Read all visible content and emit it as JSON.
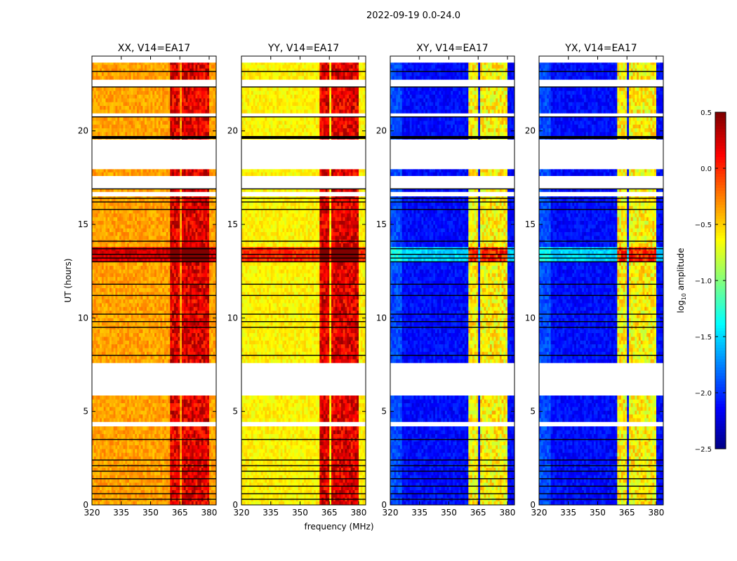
{
  "chart_data": {
    "type": "heatmap",
    "title": "2022-09-19 0.0-24.0",
    "xlabel": "frequency (MHz)",
    "ylabel": "UT (hours)",
    "xlim": [
      320,
      383.6
    ],
    "ylim": [
      0,
      24
    ],
    "xticks": [
      320,
      335,
      350,
      365,
      380
    ],
    "yticks": [
      0,
      5,
      10,
      15,
      20
    ],
    "panels": [
      {
        "title": "XX, V14=EA17",
        "base": -0.35,
        "rfi": 0.2
      },
      {
        "title": "YY, V14=EA17",
        "base": -0.6,
        "rfi": 0.2
      },
      {
        "title": "XY, V14=EA17",
        "base": -2.1,
        "rfi": -0.6
      },
      {
        "title": "YX, V14=EA17",
        "base": -2.1,
        "rfi": -0.6
      }
    ],
    "rfi_bands": [
      [
        360.3,
        365.2
      ],
      [
        365.6,
        370
      ],
      [
        370.4,
        375
      ],
      [
        375.4,
        380
      ]
    ],
    "segments": [
      [
        0,
        4.2
      ],
      [
        4.45,
        5.85
      ],
      [
        7.6,
        16.5
      ],
      [
        16.75,
        16.9
      ],
      [
        17.6,
        17.95
      ],
      [
        19.55,
        20.75
      ],
      [
        20.95,
        22.35
      ],
      [
        22.75,
        23.65
      ]
    ],
    "flagged_rows": [
      0.3,
      0.6,
      1.0,
      1.4,
      1.8,
      2.1,
      2.4,
      3.5,
      8.0,
      9.5,
      9.8,
      10.2,
      11.2,
      11.8,
      13.0,
      13.2,
      13.4,
      13.7,
      14.1,
      15.8,
      16.2,
      16.4,
      16.9,
      19.65,
      20.75,
      22.35,
      23.18
    ],
    "colorbar": {
      "label": "log10 amplitude",
      "range": [
        -2.5,
        0.5
      ],
      "ticks": [
        "0.5",
        "0.0",
        "−0.5",
        "−1.0",
        "−1.5",
        "−2.0",
        "−2.5"
      ],
      "colormap": "jet"
    }
  }
}
